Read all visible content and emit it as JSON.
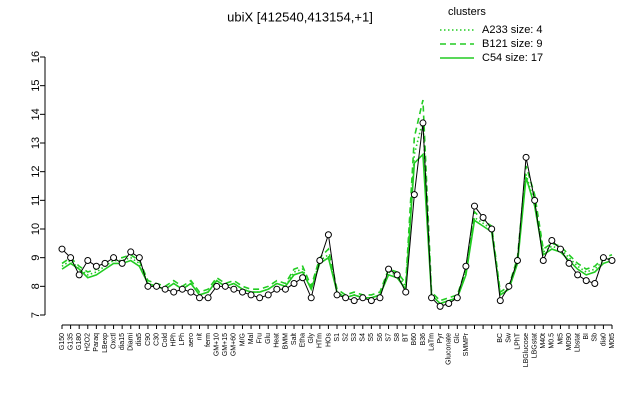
{
  "chart_data": {
    "type": "line",
    "title": "ubiX [412540,413154,+1]",
    "categories": [
      "G150",
      "G135",
      "G180",
      "H2O2",
      "Paraq",
      "LBexp",
      "Oxctl",
      "dia15",
      "Diami",
      "dia5",
      "C90",
      "C30",
      "Cold",
      "HPh",
      "LPh",
      "aero",
      "nit",
      "ferm",
      "GM+10",
      "GM+15",
      "GM+60",
      "M/G",
      "Mal",
      "Fru",
      "Glu",
      "Heat",
      "BMM",
      "Salt",
      "Etha",
      "Gly",
      "HTm",
      "HOs",
      "S1",
      "S2",
      "S3",
      "S4",
      "S5",
      "S6",
      "S7",
      "S8",
      "BT",
      "B60",
      "B36",
      "LaTm",
      "Pyr",
      "Gluconate",
      "Glc",
      "SMMPr",
      null,
      null,
      null,
      "BC",
      "Sw",
      "LPhT",
      "LBGlucose",
      "LBGstat",
      "M40t",
      "M0.5",
      "Mt5",
      "M090",
      "Lbstat",
      "BI",
      "Sb",
      "dia0",
      "M0t5"
    ],
    "values": [
      9.3,
      9.0,
      8.4,
      8.9,
      8.7,
      8.8,
      9.0,
      8.8,
      9.2,
      9.0,
      8.0,
      8.0,
      7.9,
      7.8,
      7.9,
      7.8,
      7.6,
      7.6,
      8.0,
      8.0,
      7.9,
      7.8,
      7.7,
      7.6,
      7.7,
      7.9,
      7.9,
      8.1,
      8.3,
      7.6,
      8.9,
      9.8,
      7.7,
      7.6,
      7.5,
      7.6,
      7.5,
      7.6,
      8.6,
      8.4,
      7.8,
      11.2,
      13.7,
      7.6,
      7.3,
      7.4,
      7.6,
      8.7,
      10.8,
      10.4,
      10.0,
      7.5,
      8.0,
      8.9,
      12.5,
      11.0,
      8.9,
      9.6,
      9.3,
      8.8,
      8.4,
      8.2,
      8.1,
      9.0,
      8.9
    ],
    "color": "#000000",
    "legend_title": "clusters",
    "series": [
      {
        "name": "A233 size: 4",
        "color": "#22cc22",
        "dash": "dotted",
        "values": [
          8.7,
          8.9,
          8.6,
          8.4,
          8.5,
          8.7,
          8.9,
          8.9,
          9.0,
          8.8,
          8.1,
          8.0,
          7.9,
          8.1,
          7.9,
          8.1,
          7.7,
          7.8,
          8.2,
          8.0,
          8.1,
          7.9,
          7.8,
          7.8,
          7.9,
          8.1,
          8.0,
          8.5,
          8.6,
          7.9,
          8.9,
          9.1,
          7.8,
          7.6,
          7.7,
          7.6,
          7.6,
          7.7,
          8.5,
          8.4,
          8.0,
          12.6,
          13.8,
          7.7,
          7.4,
          7.5,
          7.6,
          8.5,
          10.4,
          10.2,
          10.0,
          7.7,
          7.9,
          8.9,
          11.9,
          10.9,
          9.2,
          9.4,
          9.3,
          9.0,
          8.7,
          8.5,
          8.6,
          8.9,
          9.0
        ]
      },
      {
        "name": "B121 size: 9",
        "color": "#22cc22",
        "dash": "dashed",
        "values": [
          8.8,
          9.0,
          8.7,
          8.5,
          8.6,
          8.8,
          9.0,
          9.0,
          9.1,
          8.9,
          8.2,
          8.1,
          8.0,
          8.2,
          8.0,
          8.2,
          7.8,
          7.9,
          8.3,
          8.1,
          8.2,
          8.0,
          7.9,
          7.9,
          8.0,
          8.2,
          8.1,
          8.6,
          8.7,
          8.0,
          9.0,
          9.3,
          7.9,
          7.7,
          7.8,
          7.7,
          7.7,
          7.8,
          8.6,
          8.5,
          8.1,
          13.2,
          14.5,
          7.8,
          7.5,
          7.6,
          7.7,
          8.6,
          10.6,
          10.3,
          10.1,
          7.8,
          8.0,
          9.0,
          12.2,
          11.2,
          9.3,
          9.5,
          9.4,
          9.1,
          8.8,
          8.6,
          8.7,
          9.0,
          9.1
        ]
      },
      {
        "name": "C54 size: 17",
        "color": "#22cc22",
        "dash": "solid",
        "values": [
          8.6,
          8.8,
          8.6,
          8.3,
          8.4,
          8.6,
          8.8,
          8.8,
          8.9,
          8.7,
          8.1,
          8.0,
          7.9,
          8.1,
          7.9,
          8.1,
          7.7,
          7.8,
          8.2,
          8.0,
          8.1,
          7.9,
          7.8,
          7.8,
          7.9,
          8.1,
          8.0,
          8.4,
          8.5,
          7.9,
          8.8,
          9.0,
          7.8,
          7.6,
          7.7,
          7.6,
          7.6,
          7.7,
          8.4,
          8.3,
          7.9,
          12.3,
          12.6,
          7.7,
          7.4,
          7.5,
          7.6,
          8.4,
          10.3,
          10.1,
          9.9,
          7.7,
          7.9,
          8.8,
          11.8,
          10.8,
          9.1,
          9.3,
          9.2,
          8.9,
          8.6,
          8.4,
          8.5,
          8.8,
          8.9
        ]
      }
    ],
    "ylim": [
      7,
      16
    ],
    "yticks": [
      7,
      8,
      9,
      10,
      11,
      12,
      13,
      14,
      15,
      16
    ]
  }
}
